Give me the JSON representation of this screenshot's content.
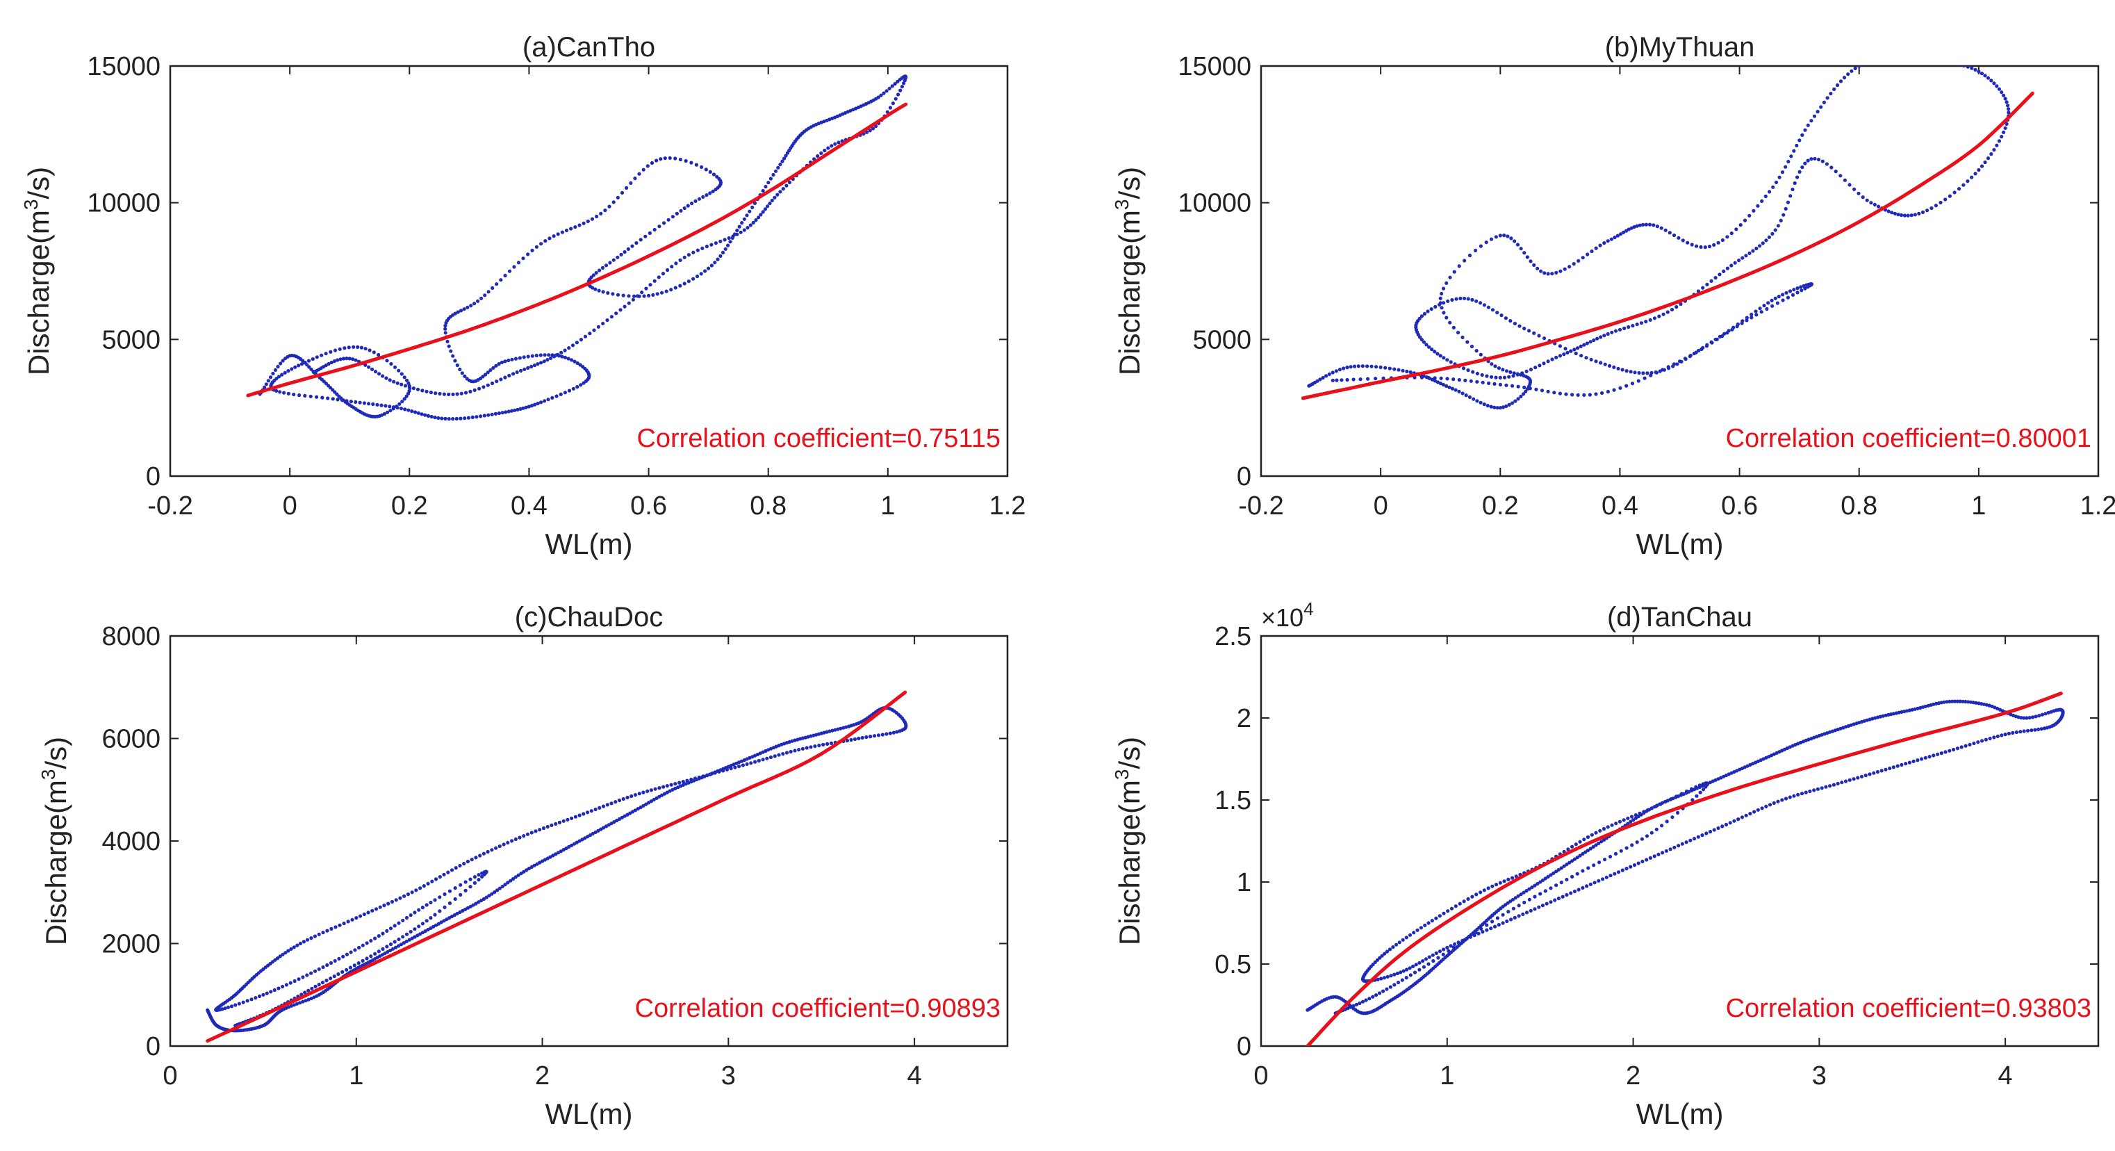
{
  "figure": {
    "colors": {
      "series": "#1f2ab8",
      "fit": "#e8101a",
      "axis": "#222222",
      "annotation": "#e8101a"
    }
  },
  "chart_data": [
    {
      "type": "scatter",
      "title": "(a)CanTho",
      "xlabel": "WL(m)",
      "ylabel": {
        "pre": "Discharge(m",
        "sup": "3",
        "post": "/s)"
      },
      "xlim": [
        -0.2,
        1.2
      ],
      "ylim": [
        0,
        15000
      ],
      "xticks": [
        -0.2,
        0,
        0.2,
        0.4,
        0.6,
        0.8,
        1,
        1.2
      ],
      "xtick_labels": [
        "-0.2",
        "0",
        "0.2",
        "0.4",
        "0.6",
        "0.8",
        "1",
        "1.2"
      ],
      "yticks": [
        0,
        5000,
        10000,
        15000
      ],
      "ytick_labels": [
        "0",
        "5000",
        "10000",
        "15000"
      ],
      "grid": false,
      "annotation": "Correlation coefficient=0.75115",
      "series": [
        {
          "style": "dotted-loops",
          "points": [
            [
              -0.05,
              3000
            ],
            [
              0.0,
              4400
            ],
            [
              0.05,
              3600
            ],
            [
              0.1,
              2600
            ],
            [
              0.15,
              2200
            ],
            [
              0.2,
              3300
            ],
            [
              0.12,
              4700
            ],
            [
              0.02,
              4100
            ],
            [
              -0.03,
              3200
            ],
            [
              0.08,
              2800
            ],
            [
              0.18,
              2500
            ],
            [
              0.26,
              2100
            ],
            [
              0.35,
              2300
            ],
            [
              0.42,
              2700
            ],
            [
              0.5,
              3600
            ],
            [
              0.45,
              4400
            ],
            [
              0.36,
              4200
            ],
            [
              0.3,
              3500
            ],
            [
              0.26,
              5500
            ],
            [
              0.32,
              6500
            ],
            [
              0.42,
              8500
            ],
            [
              0.52,
              9600
            ],
            [
              0.62,
              11600
            ],
            [
              0.72,
              10800
            ],
            [
              0.66,
              9800
            ],
            [
              0.56,
              8200
            ],
            [
              0.5,
              7000
            ],
            [
              0.6,
              6600
            ],
            [
              0.7,
              7600
            ],
            [
              0.76,
              9400
            ],
            [
              0.82,
              11400
            ],
            [
              0.86,
              12600
            ],
            [
              0.92,
              13200
            ],
            [
              0.98,
              13800
            ],
            [
              1.03,
              14600
            ],
            [
              0.98,
              12800
            ],
            [
              0.9,
              12000
            ],
            [
              0.82,
              10400
            ],
            [
              0.76,
              9000
            ],
            [
              0.66,
              8000
            ],
            [
              0.56,
              6200
            ],
            [
              0.46,
              4600
            ],
            [
              0.38,
              3800
            ],
            [
              0.28,
              3000
            ],
            [
              0.18,
              3400
            ],
            [
              0.1,
              4300
            ],
            [
              0.04,
              3800
            ]
          ]
        },
        {
          "style": "line-fit",
          "points": [
            [
              -0.07,
              2950
            ],
            [
              0.0,
              3400
            ],
            [
              0.1,
              4000
            ],
            [
              0.2,
              4650
            ],
            [
              0.3,
              5350
            ],
            [
              0.4,
              6150
            ],
            [
              0.5,
              7050
            ],
            [
              0.6,
              8050
            ],
            [
              0.7,
              9150
            ],
            [
              0.8,
              10400
            ],
            [
              0.9,
              11800
            ],
            [
              1.0,
              13200
            ],
            [
              1.03,
              13600
            ]
          ]
        }
      ]
    },
    {
      "type": "scatter",
      "title": "(b)MyThuan",
      "xlabel": "WL(m)",
      "ylabel": {
        "pre": "Discharge(m",
        "sup": "3",
        "post": "/s)"
      },
      "xlim": [
        -0.2,
        1.2
      ],
      "ylim": [
        0,
        15000
      ],
      "xticks": [
        -0.2,
        0,
        0.2,
        0.4,
        0.6,
        0.8,
        1,
        1.2
      ],
      "xtick_labels": [
        "-0.2",
        "0",
        "0.2",
        "0.4",
        "0.6",
        "0.8",
        "1",
        "1.2"
      ],
      "yticks": [
        0,
        5000,
        10000,
        15000
      ],
      "ytick_labels": [
        "0",
        "5000",
        "10000",
        "15000"
      ],
      "grid": false,
      "annotation": "Correlation coefficient=0.80001",
      "series": [
        {
          "style": "dotted-loops",
          "points": [
            [
              -0.12,
              3300
            ],
            [
              -0.05,
              4000
            ],
            [
              0.05,
              3800
            ],
            [
              0.12,
              3200
            ],
            [
              0.2,
              2500
            ],
            [
              0.25,
              3500
            ],
            [
              0.18,
              4200
            ],
            [
              0.1,
              6500
            ],
            [
              0.2,
              8800
            ],
            [
              0.28,
              7400
            ],
            [
              0.38,
              8600
            ],
            [
              0.45,
              9200
            ],
            [
              0.55,
              8400
            ],
            [
              0.65,
              10400
            ],
            [
              0.72,
              13000
            ],
            [
              0.8,
              15000
            ],
            [
              0.9,
              15200
            ],
            [
              1.0,
              14800
            ],
            [
              1.05,
              13300
            ],
            [
              1.0,
              11200
            ],
            [
              0.9,
              9600
            ],
            [
              0.82,
              10000
            ],
            [
              0.72,
              11600
            ],
            [
              0.66,
              9000
            ],
            [
              0.58,
              7600
            ],
            [
              0.48,
              6000
            ],
            [
              0.38,
              5200
            ],
            [
              0.3,
              4400
            ],
            [
              0.2,
              3600
            ],
            [
              0.1,
              4400
            ],
            [
              0.06,
              5600
            ],
            [
              0.14,
              6500
            ],
            [
              0.24,
              5400
            ],
            [
              0.36,
              4200
            ],
            [
              0.46,
              3800
            ],
            [
              0.56,
              5000
            ],
            [
              0.66,
              6500
            ],
            [
              0.72,
              7000
            ],
            [
              0.62,
              5800
            ],
            [
              0.5,
              4200
            ],
            [
              0.36,
              3000
            ],
            [
              0.22,
              3300
            ],
            [
              0.08,
              3600
            ],
            [
              -0.08,
              3500
            ]
          ]
        },
        {
          "style": "line-fit",
          "points": [
            [
              -0.13,
              2850
            ],
            [
              0.0,
              3450
            ],
            [
              0.1,
              3900
            ],
            [
              0.2,
              4400
            ],
            [
              0.3,
              5000
            ],
            [
              0.4,
              5650
            ],
            [
              0.5,
              6400
            ],
            [
              0.6,
              7250
            ],
            [
              0.7,
              8200
            ],
            [
              0.8,
              9300
            ],
            [
              0.9,
              10600
            ],
            [
              1.0,
              12100
            ],
            [
              1.09,
              14000
            ]
          ]
        }
      ]
    },
    {
      "type": "scatter",
      "title": "(c)ChauDoc",
      "xlabel": "WL(m)",
      "ylabel": {
        "pre": "Discharge(m",
        "sup": "3",
        "post": "/s)"
      },
      "xlim": [
        0,
        4.5
      ],
      "ylim": [
        0,
        8000
      ],
      "xticks": [
        0,
        1,
        2,
        3,
        4
      ],
      "xtick_labels": [
        "0",
        "1",
        "2",
        "3",
        "4"
      ],
      "yticks": [
        0,
        2000,
        4000,
        6000,
        8000
      ],
      "ytick_labels": [
        "0",
        "2000",
        "4000",
        "6000",
        "8000"
      ],
      "grid": false,
      "annotation": "Correlation coefficient=0.90893",
      "series": [
        {
          "style": "dotted-loops",
          "points": [
            [
              0.2,
              700
            ],
            [
              0.25,
              400
            ],
            [
              0.35,
              300
            ],
            [
              0.5,
              400
            ],
            [
              0.6,
              700
            ],
            [
              0.8,
              1000
            ],
            [
              0.95,
              1400
            ],
            [
              1.1,
              1700
            ],
            [
              1.3,
              2100
            ],
            [
              1.5,
              2500
            ],
            [
              1.7,
              2900
            ],
            [
              1.9,
              3400
            ],
            [
              2.1,
              3800
            ],
            [
              2.3,
              4200
            ],
            [
              2.5,
              4600
            ],
            [
              2.7,
              5000
            ],
            [
              2.9,
              5300
            ],
            [
              3.1,
              5600
            ],
            [
              3.3,
              5900
            ],
            [
              3.5,
              6100
            ],
            [
              3.7,
              6300
            ],
            [
              3.85,
              6600
            ],
            [
              3.95,
              6200
            ],
            [
              3.7,
              6000
            ],
            [
              3.4,
              5800
            ],
            [
              3.1,
              5500
            ],
            [
              2.8,
              5200
            ],
            [
              2.5,
              4900
            ],
            [
              2.2,
              4500
            ],
            [
              1.9,
              4100
            ],
            [
              1.6,
              3600
            ],
            [
              1.3,
              3000
            ],
            [
              1.0,
              2500
            ],
            [
              0.7,
              2000
            ],
            [
              0.5,
              1500
            ],
            [
              0.35,
              1000
            ],
            [
              0.25,
              700
            ],
            [
              0.5,
              1000
            ],
            [
              0.8,
              1500
            ],
            [
              1.1,
              2100
            ],
            [
              1.4,
              2800
            ],
            [
              1.7,
              3400
            ],
            [
              1.4,
              2500
            ],
            [
              1.1,
              1800
            ],
            [
              0.8,
              1200
            ],
            [
              0.55,
              700
            ],
            [
              0.35,
              400
            ]
          ]
        },
        {
          "style": "line-fit",
          "points": [
            [
              0.2,
              100
            ],
            [
              0.5,
              600
            ],
            [
              1.0,
              1450
            ],
            [
              1.5,
              2300
            ],
            [
              2.0,
              3150
            ],
            [
              2.5,
              4000
            ],
            [
              3.0,
              4850
            ],
            [
              3.5,
              5700
            ],
            [
              3.95,
              6900
            ]
          ]
        }
      ]
    },
    {
      "type": "scatter",
      "title": "(d)TanChau",
      "xlabel": "WL(m)",
      "ylabel": {
        "pre": "Discharge(m",
        "sup": "3",
        "post": "/s)"
      },
      "exponent_label": {
        "base": "×10",
        "sup": "4"
      },
      "xlim": [
        0,
        4.5
      ],
      "ylim": [
        0,
        2.5
      ],
      "xticks": [
        0,
        1,
        2,
        3,
        4
      ],
      "xtick_labels": [
        "0",
        "1",
        "2",
        "3",
        "4"
      ],
      "yticks": [
        0,
        0.5,
        1,
        1.5,
        2,
        2.5
      ],
      "ytick_labels": [
        "0",
        "0.5",
        "1",
        "1.5",
        "2",
        "2.5"
      ],
      "grid": false,
      "annotation": "Correlation coefficient=0.93803",
      "series": [
        {
          "style": "dotted-loops",
          "points": [
            [
              0.25,
              0.22
            ],
            [
              0.4,
              0.3
            ],
            [
              0.55,
              0.2
            ],
            [
              0.7,
              0.28
            ],
            [
              0.85,
              0.4
            ],
            [
              1.0,
              0.55
            ],
            [
              1.15,
              0.7
            ],
            [
              1.3,
              0.85
            ],
            [
              1.5,
              1.0
            ],
            [
              1.7,
              1.15
            ],
            [
              1.9,
              1.3
            ],
            [
              2.1,
              1.45
            ],
            [
              2.3,
              1.55
            ],
            [
              2.5,
              1.65
            ],
            [
              2.7,
              1.75
            ],
            [
              2.9,
              1.85
            ],
            [
              3.1,
              1.93
            ],
            [
              3.3,
              2.0
            ],
            [
              3.5,
              2.05
            ],
            [
              3.7,
              2.1
            ],
            [
              3.9,
              2.08
            ],
            [
              4.1,
              2.0
            ],
            [
              4.3,
              2.05
            ],
            [
              4.25,
              1.95
            ],
            [
              4.0,
              1.9
            ],
            [
              3.7,
              1.8
            ],
            [
              3.4,
              1.7
            ],
            [
              3.1,
              1.6
            ],
            [
              2.8,
              1.5
            ],
            [
              2.5,
              1.35
            ],
            [
              2.2,
              1.2
            ],
            [
              1.9,
              1.05
            ],
            [
              1.6,
              0.9
            ],
            [
              1.3,
              0.75
            ],
            [
              1.0,
              0.6
            ],
            [
              0.75,
              0.45
            ],
            [
              0.55,
              0.4
            ],
            [
              0.65,
              0.55
            ],
            [
              0.9,
              0.75
            ],
            [
              1.2,
              0.95
            ],
            [
              1.5,
              1.1
            ],
            [
              1.8,
              1.3
            ],
            [
              2.1,
              1.45
            ],
            [
              2.4,
              1.6
            ],
            [
              2.1,
              1.3
            ],
            [
              1.7,
              1.05
            ],
            [
              1.3,
              0.8
            ],
            [
              0.9,
              0.5
            ],
            [
              0.6,
              0.3
            ],
            [
              0.4,
              0.2
            ]
          ]
        },
        {
          "style": "line-fit",
          "points": [
            [
              0.25,
              0.0
            ],
            [
              0.5,
              0.3
            ],
            [
              0.8,
              0.6
            ],
            [
              1.2,
              0.9
            ],
            [
              1.6,
              1.15
            ],
            [
              2.0,
              1.35
            ],
            [
              2.5,
              1.55
            ],
            [
              3.0,
              1.72
            ],
            [
              3.5,
              1.88
            ],
            [
              4.0,
              2.03
            ],
            [
              4.3,
              2.15
            ]
          ]
        }
      ]
    }
  ]
}
